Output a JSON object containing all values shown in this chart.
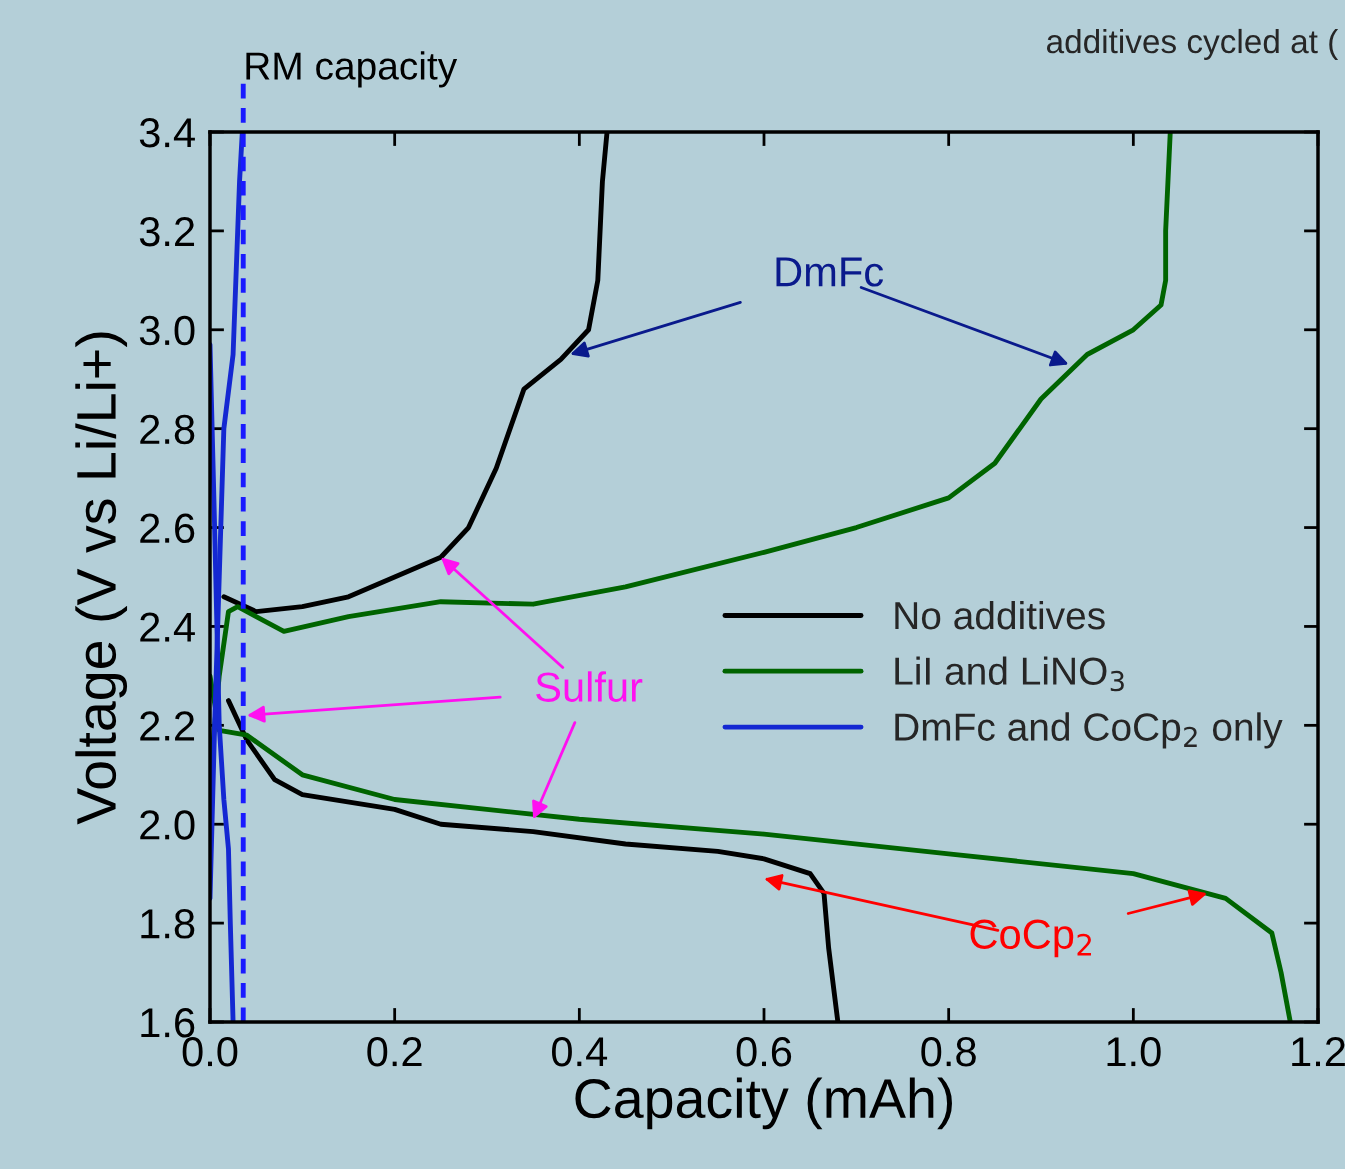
{
  "chart_data": {
    "type": "line",
    "xlabel": "Capacity (mAh)",
    "ylabel": "Voltage (V vs Li/Li+)",
    "xlim": [
      0,
      1.2
    ],
    "ylim": [
      1.6,
      3.4
    ],
    "xticks": [
      {
        "value": 0,
        "label": "0.0"
      },
      0.2,
      0.4,
      0.6,
      0.8,
      {
        "value": 1,
        "label": "1.0"
      },
      1.2
    ],
    "yticks": [
      1.6,
      1.8,
      {
        "value": 2,
        "label": "2.0"
      },
      2.2,
      2.4,
      2.6,
      2.8,
      {
        "value": 3,
        "label": "3.0"
      },
      3.2,
      3.4
    ],
    "grid": false,
    "legend": "right",
    "series": [
      {
        "name": "No additives",
        "color": "#000000",
        "x": [
          0.02,
          0.04,
          0.07,
          0.1,
          0.2,
          0.25,
          0.35,
          0.45,
          0.55,
          0.6,
          0.65,
          0.665,
          0.67,
          0.68
        ],
        "values": [
          2.25,
          2.17,
          2.09,
          2.06,
          2.03,
          2.0,
          1.985,
          1.96,
          1.945,
          1.93,
          1.9,
          1.86,
          1.75,
          1.6
        ]
      },
      {
        "color": "#000000",
        "x": [
          0.015,
          0.05,
          0.1,
          0.15,
          0.2,
          0.25,
          0.28,
          0.31,
          0.34,
          0.38,
          0.41,
          0.42,
          0.425,
          0.43
        ],
        "values": [
          2.46,
          2.43,
          2.44,
          2.46,
          2.5,
          2.54,
          2.6,
          2.72,
          2.88,
          2.94,
          3.0,
          3.1,
          3.3,
          3.4
        ]
      },
      {
        "name": "LiI and LiNO$_{3}$",
        "color": "#006400",
        "x": [
          0.0,
          0.01,
          0.04,
          0.1,
          0.2,
          0.4,
          0.6,
          0.8,
          1.0,
          1.1,
          1.15,
          1.16,
          1.17
        ],
        "values": [
          2.3,
          2.19,
          2.18,
          2.1,
          2.05,
          2.01,
          1.98,
          1.94,
          1.9,
          1.85,
          1.78,
          1.7,
          1.6
        ]
      },
      {
        "color": "#006400",
        "x": [
          0.0,
          0.01,
          0.02,
          0.03,
          0.05,
          0.08,
          0.15,
          0.25,
          0.35,
          0.45,
          0.6,
          0.7,
          0.8,
          0.85,
          0.9,
          0.95,
          1.0,
          1.03,
          1.035,
          1.035,
          1.04
        ],
        "values": [
          2.1,
          2.3,
          2.43,
          2.44,
          2.42,
          2.39,
          2.42,
          2.45,
          2.445,
          2.48,
          2.55,
          2.6,
          2.66,
          2.73,
          2.86,
          2.95,
          3.0,
          3.05,
          3.1,
          3.2,
          3.4
        ]
      },
      {
        "name": "DmFc and CoCp$_{2}$ only",
        "color": "#1428d2",
        "x": [
          0.0,
          0.005,
          0.01,
          0.015,
          0.02,
          0.022,
          0.025
        ],
        "values": [
          2.97,
          2.6,
          2.2,
          2.05,
          1.95,
          1.8,
          1.6
        ]
      },
      {
        "color": "#1428d2",
        "x": [
          0.0,
          0.005,
          0.01,
          0.015,
          0.025,
          0.028,
          0.032,
          0.035
        ],
        "values": [
          1.85,
          2.2,
          2.5,
          2.8,
          2.95,
          3.1,
          3.3,
          3.4
        ]
      }
    ],
    "ref_lines": [
      {
        "axis": "x",
        "value": 0.036,
        "label": "RM capacity",
        "color": "#1a1aff",
        "line_style": "dashed"
      }
    ],
    "annotations": [
      {
        "text": "DmFc",
        "x": 0.39,
        "y": 2.95
      },
      {
        "text": "Sulfur",
        "x": 0.04,
        "y": 2.22
      },
      {
        "text": "CoCp$_{2}$",
        "x": 1.08,
        "y": 1.86
      },
      "additives cycled at ("
    ]
  }
}
